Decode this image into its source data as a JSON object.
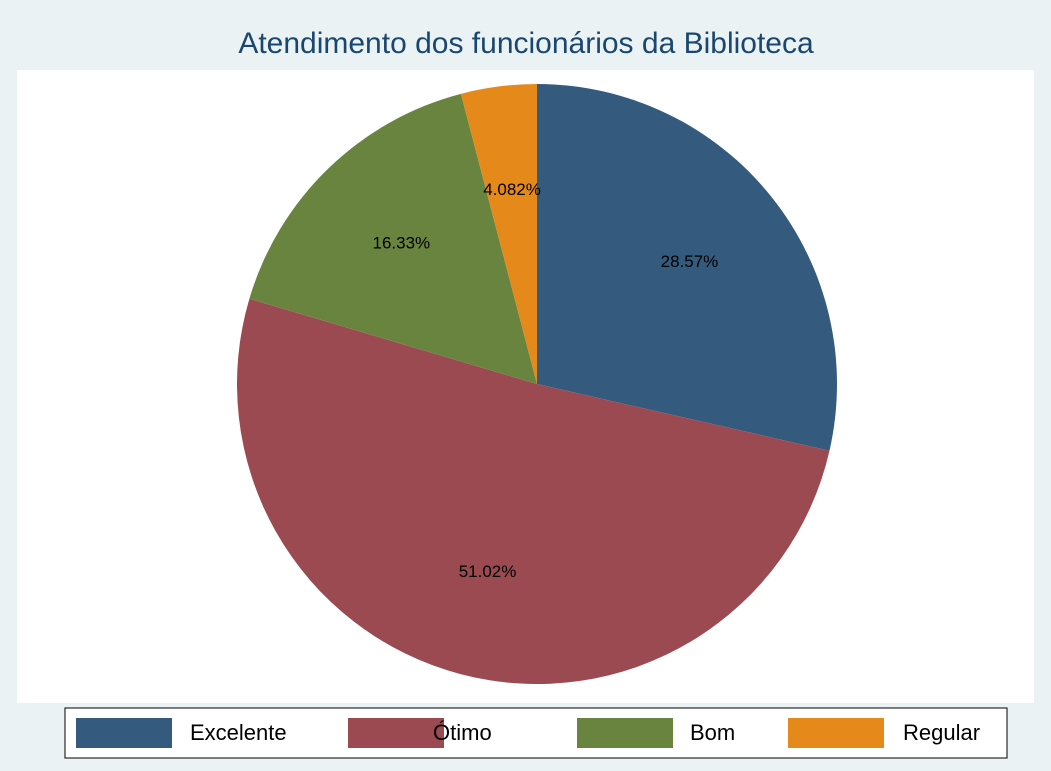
{
  "chart_data": {
    "type": "pie",
    "title": "Atendimento dos funcionários da Biblioteca",
    "categories": [
      "Excelente",
      "Ótimo",
      "Bom",
      "Regular"
    ],
    "values": [
      28.57,
      51.02,
      16.33,
      4.082
    ],
    "value_labels": [
      "28.57%",
      "51.02%",
      "16.33%",
      "4.082%"
    ],
    "colors": [
      "#345a7d",
      "#9b4a51",
      "#68843f",
      "#e58a1a"
    ],
    "legend": "bottom"
  }
}
